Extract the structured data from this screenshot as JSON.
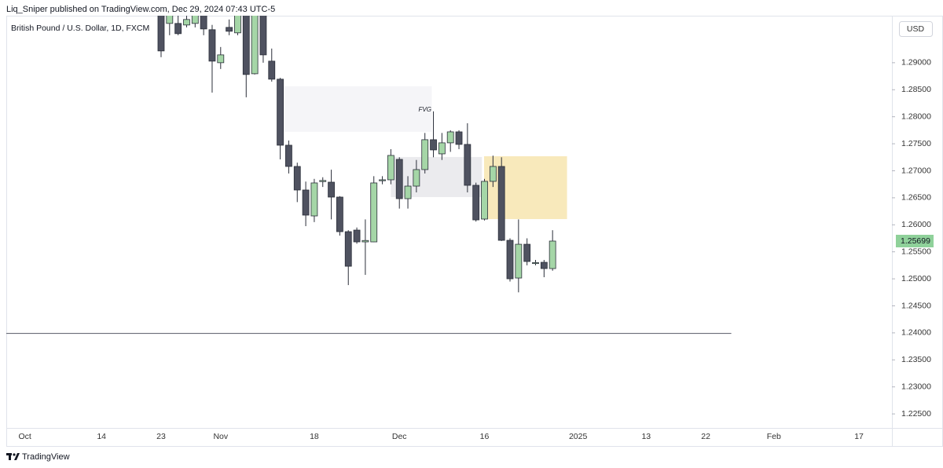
{
  "header": {
    "publisher": "Liq_Sniper published on TradingView.com, Dec 29, 2024 07:43 UTC-5",
    "brand": "TradingView"
  },
  "chart_data": {
    "type": "candlestick",
    "title": "British Pound / U.S. Dollar, 1D, FXCM",
    "currency": "USD",
    "categories": [
      "Oct",
      null,
      null,
      null,
      null,
      null,
      null,
      null,
      null,
      "14",
      null,
      null,
      null,
      null,
      null,
      null,
      "23",
      null,
      null,
      null,
      null,
      null,
      null,
      "Nov",
      null,
      null,
      null,
      null,
      null,
      null,
      null,
      null,
      null,
      null,
      "18",
      null,
      null,
      null,
      null,
      null,
      null,
      null,
      null,
      null,
      "Dec",
      null,
      null,
      null,
      null,
      null,
      null,
      null,
      null,
      null,
      "16",
      null,
      null,
      null,
      null,
      null,
      null,
      null,
      null,
      null,
      null,
      "2025",
      null,
      null,
      null,
      null,
      null,
      null,
      null,
      "13",
      null,
      null,
      null,
      null,
      null,
      null,
      "22",
      null,
      null,
      null,
      null,
      null,
      null,
      null,
      "Feb",
      null,
      null,
      null,
      null,
      null,
      null,
      null,
      null,
      null,
      "17",
      null,
      null,
      null
    ],
    "open": [
      null,
      null,
      null,
      null,
      null,
      null,
      null,
      null,
      null,
      null,
      null,
      null,
      null,
      null,
      null,
      null,
      1.299,
      1.29727,
      1.29727,
      1.29698,
      1.29727,
      1.299,
      1.29611,
      1.29,
      1.29654,
      1.29553,
      1.299,
      1.28796,
      1.299,
      1.29029,
      1.28695,
      1.27473,
      1.2708,
      1.26644,
      1.26164,
      1.268,
      1.26789,
      1.26513,
      1.25873,
      1.25902,
      1.25684,
      1.25684,
      1.2682,
      1.26833,
      1.27211,
      1.26484,
      1.26716,
      1.27022,
      1.27575,
      1.27313,
      1.27517,
      1.2772,
      1.27488,
      1.26731,
      1.26106,
      1.26804,
      1.2708,
      1.25713,
      1.25015,
      1.2564,
      1.25291,
      1.25306,
      1.2519,
      null,
      null,
      null,
      null,
      null,
      null,
      null,
      null,
      null,
      null,
      null,
      null,
      null,
      null,
      null,
      null,
      null,
      null,
      null,
      null,
      null,
      null,
      null,
      null,
      null,
      null,
      null,
      null,
      null,
      null,
      null,
      null,
      null,
      null,
      null,
      null,
      null,
      null,
      null
    ],
    "high": [
      null,
      null,
      null,
      null,
      null,
      null,
      null,
      null,
      null,
      null,
      null,
      null,
      null,
      null,
      null,
      null,
      1.3,
      1.3,
      1.29873,
      1.29873,
      1.3,
      1.3,
      1.297,
      1.29291,
      1.298,
      1.3,
      1.3,
      1.3,
      1.3,
      1.29262,
      1.2872,
      1.2756,
      1.2715,
      1.268,
      1.2685,
      1.2688,
      1.2702,
      1.2653,
      1.259,
      1.2595,
      1.261,
      1.269,
      1.269,
      1.274,
      1.2725,
      1.269,
      1.272,
      1.277,
      1.281,
      1.277,
      1.2775,
      1.2775,
      1.2788,
      1.2678,
      1.2685,
      1.2728,
      1.2725,
      1.2575,
      1.261,
      1.2575,
      1.2535,
      1.2535,
      1.259,
      null,
      null,
      null,
      null,
      null,
      null,
      null,
      null,
      null,
      null,
      null,
      null,
      null,
      null,
      null,
      null,
      null,
      null,
      null,
      null,
      null,
      null,
      null,
      null,
      null,
      null,
      null,
      null,
      null,
      null,
      null,
      null,
      null,
      null,
      null,
      null,
      null,
      null,
      null
    ],
    "low": [
      null,
      null,
      null,
      null,
      null,
      null,
      null,
      null,
      null,
      null,
      null,
      null,
      null,
      null,
      null,
      null,
      1.29102,
      1.29509,
      1.29509,
      1.29654,
      1.29654,
      1.29509,
      1.28447,
      1.28884,
      1.29509,
      1.29509,
      1.2836,
      1.28782,
      1.29,
      1.2865,
      1.27211,
      1.2695,
      1.2642,
      1.25975,
      1.2605,
      1.267,
      1.261,
      1.258,
      1.24884,
      1.2565,
      1.25073,
      1.2568,
      1.2675,
      1.2675,
      1.263,
      1.263,
      1.266,
      1.2695,
      1.2725,
      1.272,
      1.2735,
      1.274,
      1.266,
      1.2606,
      1.2608,
      1.267,
      1.257,
      1.2495,
      1.2475,
      1.2525,
      1.2525,
      1.2503,
      1.2515,
      null,
      null,
      null,
      null,
      null,
      null,
      null,
      null,
      null,
      null,
      null,
      null,
      null,
      null,
      null,
      null,
      null,
      null,
      null,
      null,
      null,
      null,
      null,
      null,
      null,
      null,
      null,
      null,
      null,
      null,
      null,
      null,
      null,
      null,
      null,
      null,
      null,
      null,
      null
    ],
    "close": [
      null,
      null,
      null,
      null,
      null,
      null,
      null,
      null,
      null,
      null,
      null,
      null,
      null,
      null,
      null,
      null,
      1.29218,
      1.299,
      1.29538,
      1.298,
      1.299,
      1.29625,
      1.29029,
      1.29145,
      1.29582,
      1.299,
      1.28782,
      1.299,
      1.29145,
      1.28695,
      1.27473,
      1.2708,
      1.26644,
      1.26179,
      1.26775,
      1.2682,
      1.26513,
      1.25873,
      1.25233,
      1.25684,
      1.2571,
      1.26775,
      1.26833,
      1.27284,
      1.26484,
      1.26716,
      1.27022,
      1.27575,
      1.27386,
      1.27517,
      1.2772,
      1.27488,
      1.26731,
      1.26091,
      1.26804,
      1.2708,
      1.25713,
      1.25001,
      1.2564,
      1.25321,
      1.253,
      1.2519,
      1.25699,
      null,
      null,
      null,
      null,
      null,
      null,
      null,
      null,
      null,
      null,
      null,
      null,
      null,
      null,
      null,
      null,
      null,
      null,
      null,
      null,
      null,
      null,
      null,
      null,
      null,
      null,
      null,
      null,
      null,
      null,
      null,
      null,
      null,
      null,
      null,
      null,
      null,
      null,
      null
    ],
    "up_color": "#a5d6a7",
    "down_color": "#4f5260",
    "outline_color": "#2a2e39",
    "ylim": [
      1.2224,
      1.2987
    ],
    "yticks": [
      {
        "value": 1.29,
        "label": "1.29000"
      },
      {
        "value": 1.285,
        "label": "1.28500"
      },
      {
        "value": 1.28,
        "label": "1.28000"
      },
      {
        "value": 1.275,
        "label": "1.27500"
      },
      {
        "value": 1.27,
        "label": "1.27000"
      },
      {
        "value": 1.265,
        "label": "1.26500"
      },
      {
        "value": 1.26,
        "label": "1.26000"
      },
      {
        "value": 1.255,
        "label": "1.25500"
      },
      {
        "value": 1.25,
        "label": "1.25000"
      },
      {
        "value": 1.245,
        "label": "1.24500"
      },
      {
        "value": 1.24,
        "label": "1.24000"
      },
      {
        "value": 1.235,
        "label": "1.23500"
      },
      {
        "value": 1.23,
        "label": "1.23000"
      },
      {
        "value": 1.225,
        "label": "1.22500"
      }
    ],
    "zones": [
      {
        "x": [
          30.4,
          47.8
        ],
        "y": [
          1.2772,
          1.28564
        ],
        "color": "#f5f5f8"
      },
      {
        "x": [
          43,
          53.7
        ],
        "y": [
          1.26513,
          1.27255
        ],
        "color": "#ebebee"
      },
      {
        "x": [
          53.95,
          63.7
        ],
        "y": [
          1.26106,
          1.27269
        ],
        "color": "#f8e9bb"
      }
    ],
    "hline": {
      "x": [
        -2.2,
        83
      ],
      "y": 1.2399,
      "color": "#6a6d78"
    },
    "annotations": [
      {
        "text": "FVG",
        "x": 47,
        "y": 1.28127
      }
    ],
    "last_price_color": "#8fd19a"
  }
}
